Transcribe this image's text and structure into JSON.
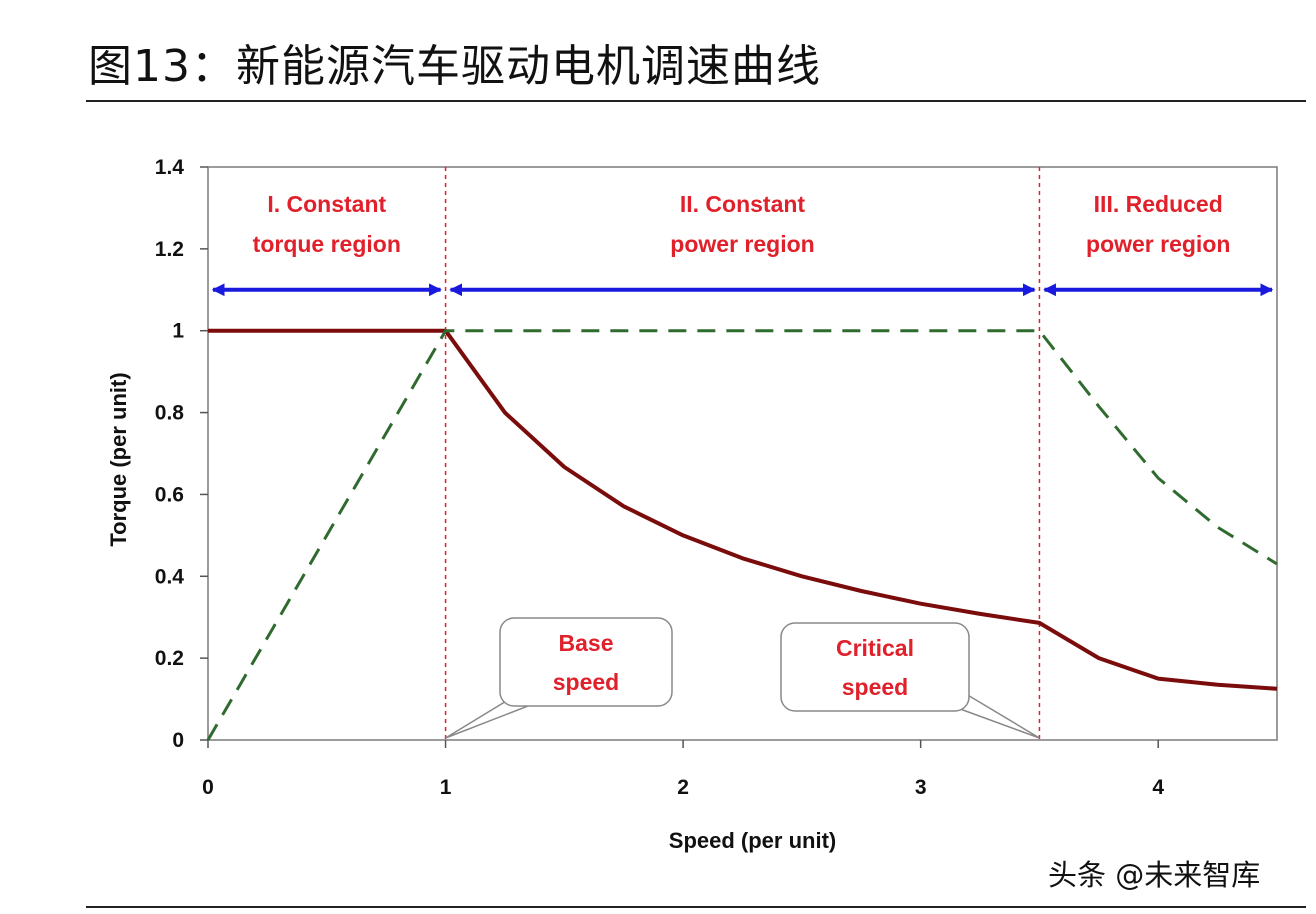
{
  "figure": {
    "title": "图13：新能源汽车驱动电机调速曲线",
    "watermark": "头条 @未来智库"
  },
  "chart_data": {
    "type": "line",
    "xlabel": "Speed (per unit)",
    "ylabel": "Torque (per unit)",
    "xlim": [
      0,
      4.5
    ],
    "ylim": [
      0,
      1.4
    ],
    "xticks": [
      0,
      1,
      2,
      3,
      4
    ],
    "yticks": [
      0,
      0.2,
      0.4,
      0.6,
      0.8,
      1,
      1.2,
      1.4
    ],
    "ytick_labels": [
      "0",
      "0.2",
      "0.4",
      "0.6",
      "0.8",
      "1",
      "1.2",
      "1.4"
    ],
    "grid": false,
    "colors": {
      "torque": "#7a0c0c",
      "power": "#2f6b2f",
      "arrow": "#1a1adf",
      "region_line": "#e0202a",
      "label": "#e0202a"
    },
    "series": [
      {
        "style": "solid",
        "x": [
          0,
          1,
          1.25,
          1.5,
          1.75,
          2,
          2.25,
          2.5,
          2.75,
          3,
          3.25,
          3.5,
          3.75,
          4,
          4.25,
          4.5
        ],
        "y": [
          1,
          1,
          0.8,
          0.667,
          0.571,
          0.5,
          0.444,
          0.4,
          0.364,
          0.333,
          0.308,
          0.286,
          0.2,
          0.15,
          0.135,
          0.125
        ]
      },
      {
        "style": "dashed",
        "x": [
          0,
          1,
          1.5,
          2,
          2.5,
          3,
          3.5,
          3.75,
          4,
          4.25,
          4.5
        ],
        "y": [
          0,
          1,
          1,
          1,
          1,
          1,
          1,
          0.815,
          0.64,
          0.52,
          0.43
        ]
      }
    ],
    "region_boundaries": [
      1,
      3.5
    ],
    "regions": [
      {
        "line1": "I. Constant",
        "line2": "torque region",
        "x_from": 0,
        "x_to": 1
      },
      {
        "line1": "II. Constant",
        "line2": "power region",
        "x_from": 1,
        "x_to": 3.5
      },
      {
        "line1": "III. Reduced",
        "line2": "power region",
        "x_from": 3.5,
        "x_to": 4.5
      }
    ],
    "callouts": [
      {
        "line1": "Base",
        "line2": "speed",
        "points_to_x": 1
      },
      {
        "line1": "Critical",
        "line2": "speed",
        "points_to_x": 3.5
      }
    ]
  }
}
